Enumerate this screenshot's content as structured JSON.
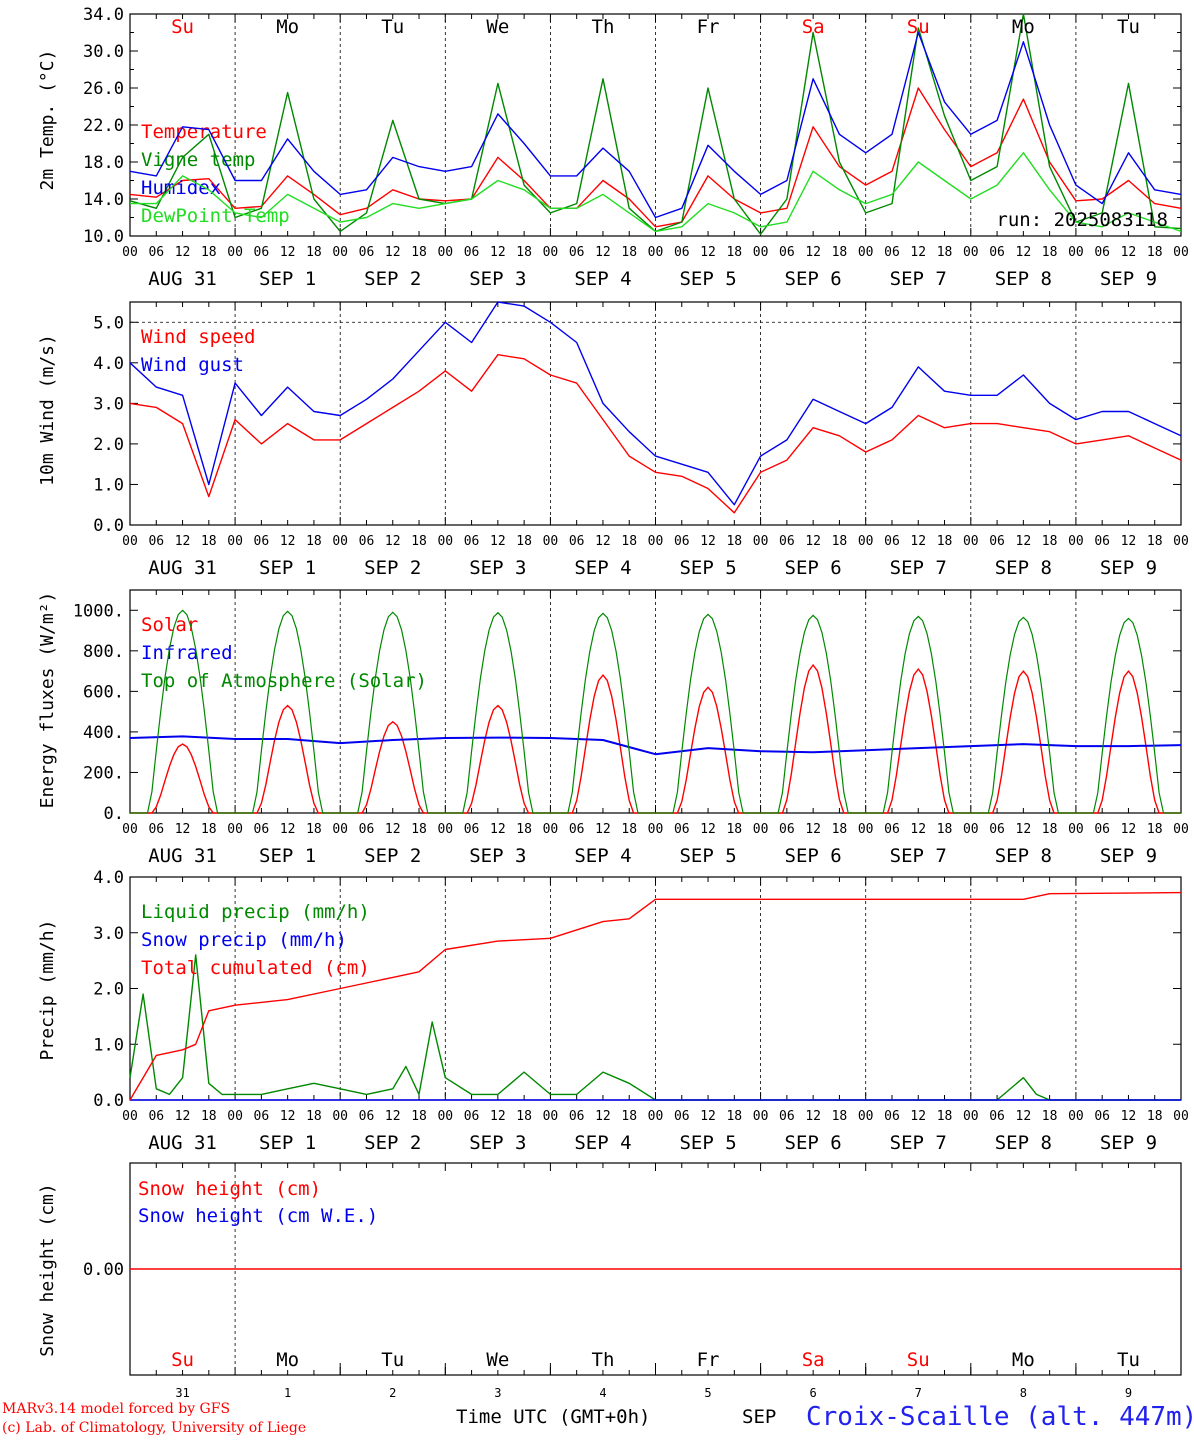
{
  "meta": {
    "credit1": "MARv3.14 model forced by GFS",
    "credit2": "(c) Lab. of Climatology, University of Liege",
    "xlabel": "Time UTC (GMT+0h)",
    "month": "SEP",
    "station": "Croix-Scaille (alt. 447m)",
    "run": "run: 2025083118"
  },
  "weekdays": [
    "Su",
    "Mo",
    "Tu",
    "We",
    "Th",
    "Fr",
    "Sa",
    "Su",
    "Mo",
    "Tu"
  ],
  "weekend_days": [
    0,
    6,
    7
  ],
  "day_labels": [
    "AUG 31",
    "SEP  1",
    "SEP  2",
    "SEP  3",
    "SEP  4",
    "SEP  5",
    "SEP  6",
    "SEP  7",
    "SEP  8",
    "SEP  9"
  ],
  "day_numbers": [
    "31",
    "1",
    "2",
    "3",
    "4",
    "5",
    "6",
    "7",
    "8",
    "9"
  ],
  "hour_ticks": [
    "00",
    "06",
    "12",
    "18"
  ],
  "colors": {
    "red": "#ff0000",
    "green": "#008800",
    "blue": "#0000ee",
    "lightgreen": "#22dd22",
    "grey": "#555555"
  },
  "chart_data": [
    {
      "type": "line",
      "panel": "temperature",
      "ylabel": "2m Temp. (°C)",
      "ylim": [
        10,
        34
      ],
      "yticks": [
        "10.0",
        "14.0",
        "18.0",
        "22.0",
        "26.0",
        "30.0",
        "34.0"
      ],
      "ytick_values": [
        10,
        14,
        18,
        22,
        26,
        30,
        34
      ],
      "x_hours": [
        0,
        6,
        12,
        18,
        24,
        30,
        36,
        42,
        48,
        54,
        60,
        66,
        72,
        78,
        84,
        90,
        96,
        102,
        108,
        114,
        120,
        126,
        132,
        138,
        144,
        150,
        156,
        162,
        168,
        174,
        180,
        186,
        192,
        198,
        204,
        210,
        216,
        222,
        228,
        234,
        240
      ],
      "series": [
        {
          "name": "Temperature",
          "color": "red",
          "values": [
            14.5,
            14.2,
            16.0,
            16.2,
            13.0,
            13.2,
            16.5,
            14.5,
            12.3,
            13.0,
            15.0,
            14.0,
            13.8,
            14.0,
            18.5,
            16.0,
            13.0,
            13.0,
            16.0,
            14.0,
            11.0,
            11.5,
            16.5,
            14.0,
            12.5,
            13.0,
            21.8,
            17.5,
            15.5,
            17.0,
            26.0,
            21.5,
            17.5,
            19.0,
            24.8,
            18.0,
            13.8,
            14.0,
            16.0,
            13.5,
            13.0
          ]
        },
        {
          "name": "Vigne temp",
          "color": "green",
          "values": [
            13.8,
            13.0,
            18.5,
            21.0,
            12.0,
            13.0,
            25.5,
            14.0,
            10.5,
            12.5,
            22.5,
            14.0,
            13.5,
            14.0,
            26.5,
            15.5,
            12.5,
            13.5,
            27.0,
            13.0,
            10.5,
            11.5,
            26.0,
            14.0,
            10.2,
            14.0,
            32.0,
            18.0,
            12.5,
            13.5,
            32.5,
            23.0,
            16.0,
            17.5,
            34.0,
            17.5,
            11.5,
            12.5,
            26.5,
            11.0,
            10.8
          ]
        },
        {
          "name": "Humidex",
          "color": "blue",
          "values": [
            17.0,
            16.5,
            21.8,
            21.5,
            16.0,
            16.0,
            20.5,
            17.0,
            14.5,
            15.0,
            18.5,
            17.5,
            17.0,
            17.5,
            23.2,
            20.0,
            16.5,
            16.5,
            19.5,
            17.0,
            12.0,
            13.0,
            19.8,
            17.0,
            14.5,
            16.0,
            27.0,
            21.0,
            19.0,
            21.0,
            32.0,
            24.5,
            21.0,
            22.5,
            31.0,
            22.0,
            15.5,
            13.5,
            19.0,
            15.0,
            14.5
          ]
        },
        {
          "name": "DewPoint Temp",
          "color": "lightgreen",
          "values": [
            13.5,
            13.5,
            16.5,
            15.0,
            12.5,
            12.0,
            14.5,
            13.0,
            11.5,
            12.0,
            13.5,
            13.0,
            13.5,
            14.0,
            16.0,
            15.0,
            13.0,
            13.0,
            14.5,
            12.5,
            10.5,
            11.0,
            13.5,
            12.5,
            11.0,
            11.5,
            17.0,
            15.0,
            13.5,
            14.5,
            18.0,
            16.0,
            14.0,
            15.5,
            19.0,
            15.0,
            11.5,
            11.0,
            12.5,
            11.5,
            10.5
          ]
        }
      ]
    },
    {
      "type": "line",
      "panel": "wind",
      "ylabel": "10m Wind (m/s)",
      "ylim": [
        0,
        5.5
      ],
      "yticks": [
        "0.0",
        "1.0",
        "2.0",
        "3.0",
        "4.0",
        "5.0"
      ],
      "ytick_values": [
        0,
        1,
        2,
        3,
        4,
        5
      ],
      "dashed_level": 5.0,
      "x_hours": [
        0,
        6,
        12,
        18,
        24,
        30,
        36,
        42,
        48,
        54,
        60,
        66,
        72,
        78,
        84,
        90,
        96,
        102,
        108,
        114,
        120,
        126,
        132,
        138,
        144,
        150,
        156,
        162,
        168,
        174,
        180,
        186,
        192,
        198,
        204,
        210,
        216,
        222,
        228,
        234,
        240
      ],
      "series": [
        {
          "name": "Wind speed",
          "color": "red",
          "values": [
            3.0,
            2.9,
            2.5,
            0.7,
            2.6,
            2.0,
            2.5,
            2.1,
            2.1,
            2.5,
            2.9,
            3.3,
            3.8,
            3.3,
            4.2,
            4.1,
            3.7,
            3.5,
            2.6,
            1.7,
            1.3,
            1.2,
            0.9,
            0.3,
            1.3,
            1.6,
            2.4,
            2.2,
            1.8,
            2.1,
            2.7,
            2.4,
            2.5,
            2.5,
            2.4,
            2.3,
            2.0,
            2.1,
            2.2,
            1.9,
            1.6
          ]
        },
        {
          "name": "Wind gust",
          "color": "blue",
          "values": [
            4.0,
            3.4,
            3.2,
            1.0,
            3.5,
            2.7,
            3.4,
            2.8,
            2.7,
            3.1,
            3.6,
            4.3,
            5.0,
            4.5,
            5.5,
            5.4,
            5.0,
            4.5,
            3.0,
            2.3,
            1.7,
            1.5,
            1.3,
            0.5,
            1.7,
            2.1,
            3.1,
            2.8,
            2.5,
            2.9,
            3.9,
            3.3,
            3.2,
            3.2,
            3.7,
            3.0,
            2.6,
            2.8,
            2.8,
            2.5,
            2.2
          ]
        }
      ]
    },
    {
      "type": "line",
      "panel": "energy",
      "ylabel": "Energy fluxes (W/m²)",
      "ylim": [
        0,
        1100
      ],
      "yticks": [
        "0.",
        "200.",
        "400.",
        "600.",
        "800.",
        "1000."
      ],
      "ytick_values": [
        0,
        200,
        400,
        600,
        800,
        1000
      ],
      "solar_peaks": [
        340,
        530,
        450,
        530,
        680,
        620,
        730,
        710,
        700,
        700
      ],
      "toa_peaks": [
        1000,
        995,
        990,
        988,
        985,
        980,
        975,
        970,
        965,
        960
      ],
      "series": [
        {
          "name": "Solar",
          "color": "red",
          "values": []
        },
        {
          "name": "Infrared",
          "color": "blue",
          "x_hours": [
            0,
            12,
            24,
            36,
            48,
            60,
            72,
            84,
            96,
            108,
            120,
            132,
            144,
            156,
            168,
            180,
            192,
            204,
            216,
            228,
            240
          ],
          "values": [
            370,
            378,
            365,
            365,
            345,
            360,
            370,
            372,
            370,
            360,
            290,
            320,
            305,
            300,
            310,
            320,
            330,
            340,
            330,
            330,
            335
          ]
        },
        {
          "name": "Top of Atmosphere (Solar)",
          "color": "green",
          "values": []
        }
      ]
    },
    {
      "type": "line",
      "panel": "precip",
      "ylabel": "Precip (mm/h)",
      "ylim": [
        0,
        4
      ],
      "yticks": [
        "0.0",
        "1.0",
        "2.0",
        "3.0",
        "4.0"
      ],
      "ytick_values": [
        0,
        1,
        2,
        3,
        4
      ],
      "series": [
        {
          "name": "Liquid precip (mm/h)",
          "color": "green",
          "x_hours": [
            0,
            3,
            6,
            9,
            12,
            15,
            18,
            21,
            24,
            30,
            36,
            42,
            48,
            54,
            60,
            63,
            66,
            69,
            72,
            78,
            84,
            90,
            96,
            102,
            108,
            114,
            120,
            126,
            168,
            180,
            192,
            198,
            204,
            207,
            210,
            240
          ],
          "values": [
            0.4,
            1.9,
            0.2,
            0.1,
            0.4,
            2.6,
            0.3,
            0.1,
            0.1,
            0.1,
            0.2,
            0.3,
            0.2,
            0.1,
            0.2,
            0.6,
            0.1,
            1.4,
            0.4,
            0.1,
            0.1,
            0.5,
            0.1,
            0.1,
            0.5,
            0.3,
            0.0,
            0.0,
            0.0,
            0.0,
            0.0,
            0.0,
            0.4,
            0.1,
            0.0,
            0.0
          ]
        },
        {
          "name": "Snow precip (mm/h)",
          "color": "blue",
          "x_hours": [
            0,
            240
          ],
          "values": [
            0.0,
            0.0
          ]
        },
        {
          "name": "Total cumulated (cm)",
          "color": "red",
          "x_hours": [
            0,
            6,
            12,
            15,
            18,
            24,
            36,
            48,
            60,
            66,
            72,
            84,
            96,
            108,
            114,
            120,
            168,
            180,
            204,
            210,
            240
          ],
          "values": [
            0.0,
            0.8,
            0.9,
            1.0,
            1.6,
            1.7,
            1.8,
            2.0,
            2.2,
            2.3,
            2.7,
            2.85,
            2.9,
            3.2,
            3.25,
            3.6,
            3.6,
            3.6,
            3.6,
            3.7,
            3.72
          ]
        }
      ]
    },
    {
      "type": "line",
      "panel": "snow",
      "ylabel": "Snow height (cm)",
      "ylim": [
        -1,
        1
      ],
      "yticks": [
        "0.00"
      ],
      "ytick_values": [
        0
      ],
      "series": [
        {
          "name": "Snow height (cm)",
          "color": "red",
          "x_hours": [
            0,
            240
          ],
          "values": [
            0,
            0
          ]
        },
        {
          "name": "Snow height (cm W.E.)",
          "color": "blue",
          "x_hours": [],
          "values": []
        }
      ]
    }
  ]
}
